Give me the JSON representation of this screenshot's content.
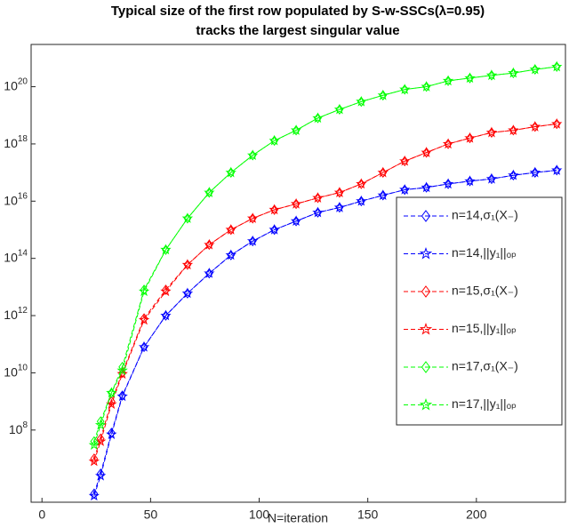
{
  "chart_data": {
    "type": "line",
    "title": [
      "Typical size of the first row populated by S-w-SSCs(λ=0.95)",
      "tracks the largest singular value"
    ],
    "x_label": "N=iteration",
    "x": [
      24,
      27,
      32,
      37,
      47,
      57,
      67,
      77,
      87,
      97,
      107,
      117,
      127,
      137,
      147,
      157,
      167,
      177,
      187,
      197,
      207,
      217,
      227,
      237
    ],
    "xlim": [
      -5,
      241
    ],
    "xticks": [
      0,
      50,
      100,
      150,
      200
    ],
    "y_scale": "log",
    "ylim": [
      300000,
      3e+21
    ],
    "yticks": [
      {
        "value": 100000000.0,
        "label": "10^8"
      },
      {
        "value": 10000000000.0,
        "label": "10^10"
      },
      {
        "value": 1000000000000.0,
        "label": "10^12"
      },
      {
        "value": 100000000000000.0,
        "label": "10^14"
      },
      {
        "value": 1e+16,
        "label": "10^16"
      },
      {
        "value": 1e+18,
        "label": "10^18"
      },
      {
        "value": 1e+20,
        "label": "10^20"
      }
    ],
    "legend": "east",
    "series": [
      {
        "name": "n=14,σ₁(X₋)",
        "color": "#0000ff",
        "marker": "diamond",
        "values": [
          600000,
          3000000,
          80000000,
          1600000000,
          80000000000,
          1000000000000.0,
          6000000000000.0,
          30000000000000.0,
          130000000000000.0,
          400000000000000.0,
          1000000000000000.0,
          2000000000000000.0,
          4000000000000000.0,
          6000000000000000.0,
          1e+16,
          1.6e+16,
          2.5e+16,
          3e+16,
          4e+16,
          5e+16,
          6e+16,
          8e+16,
          1e+17,
          1.2e+17
        ]
      },
      {
        "name": "n=14,||y₁||ₒₚ",
        "color": "#0000ff",
        "marker": "star",
        "values": [
          500000,
          2500000,
          70000000,
          1500000000,
          80000000000,
          1000000000000.0,
          6000000000000.0,
          30000000000000.0,
          130000000000000.0,
          400000000000000.0,
          1000000000000000.0,
          2000000000000000.0,
          4000000000000000.0,
          6000000000000000.0,
          1e+16,
          1.6e+16,
          2.5e+16,
          3e+16,
          4e+16,
          5e+16,
          6e+16,
          8e+16,
          1e+17,
          1.2e+17
        ]
      },
      {
        "name": "n=15,σ₁(X₋)",
        "color": "#ff0000",
        "marker": "diamond",
        "values": [
          10000000,
          50000000,
          1000000000,
          10000000000,
          800000000000,
          8000000000000.0,
          60000000000000.0,
          300000000000000.0,
          1000000000000000.0,
          2500000000000000.0,
          5000000000000000.0,
          8000000000000000.0,
          1.3e+16,
          2e+16,
          4e+16,
          1e+17,
          2.5e+17,
          5e+17,
          1e+18,
          1.6e+18,
          2.5e+18,
          3e+18,
          4e+18,
          5e+18
        ]
      },
      {
        "name": "n=15,||y₁||ₒₚ",
        "color": "#ff0000",
        "marker": "star",
        "values": [
          8000000,
          40000000,
          800000000,
          9000000000,
          700000000000,
          7000000000000.0,
          60000000000000.0,
          300000000000000.0,
          1000000000000000.0,
          2500000000000000.0,
          5000000000000000.0,
          8000000000000000.0,
          1.3e+16,
          2e+16,
          4e+16,
          1e+17,
          2.5e+17,
          5e+17,
          1e+18,
          1.6e+18,
          2.5e+18,
          3e+18,
          4e+18,
          5e+18
        ]
      },
      {
        "name": "n=17,σ₁(X₋)",
        "color": "#00ff00",
        "marker": "diamond",
        "values": [
          40000000,
          200000000,
          2000000000,
          16000000000,
          8000000000000.0,
          200000000000000.0,
          2500000000000000.0,
          2e+16,
          1e+17,
          4e+17,
          1.3e+18,
          3e+18,
          8e+18,
          1.6e+19,
          3e+19,
          5e+19,
          8e+19,
          1e+20,
          1.6e+20,
          2e+20,
          2.5e+20,
          3e+20,
          4e+20,
          5e+20
        ]
      },
      {
        "name": "n=17,||y₁||ₒₚ",
        "color": "#00ff00",
        "marker": "star",
        "values": [
          30000000,
          150000000,
          2000000000,
          12000000000,
          7000000000000.0,
          200000000000000.0,
          2500000000000000.0,
          2e+16,
          1e+17,
          4e+17,
          1.3e+18,
          3e+18,
          8e+18,
          1.6e+19,
          3e+19,
          5e+19,
          8e+19,
          1e+20,
          1.6e+20,
          2e+20,
          2.5e+20,
          3e+20,
          4e+20,
          5e+20
        ]
      }
    ]
  }
}
